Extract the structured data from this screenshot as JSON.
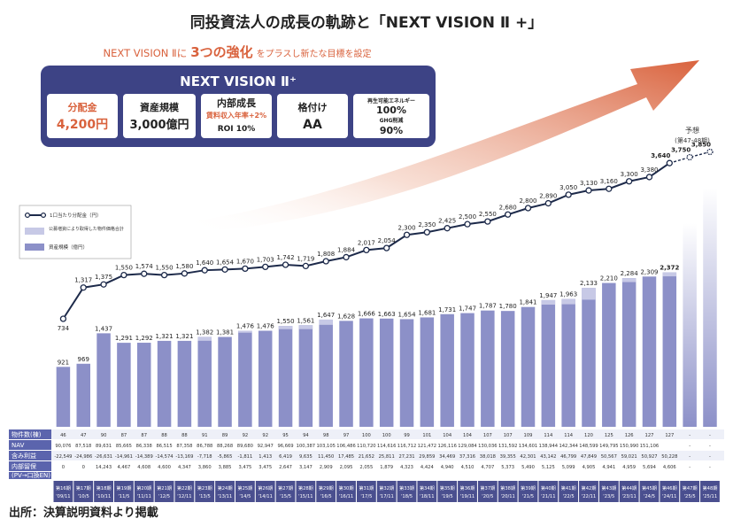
{
  "title": "同投資法人の成長の軌跡と「NEXT VISION Ⅱ +」",
  "subtitle_prefix": "NEXT VISION Ⅱに",
  "subtitle_emph": "3つの強化",
  "subtitle_suffix": "をプラスし新たな目標を設定",
  "box": {
    "title": "NEXT VISION Ⅱ⁺",
    "c1_label": "分配金",
    "c1_value": "4,200円",
    "c2_label": "資産規模",
    "c2_value": "3,000億円",
    "c3_label": "内部成長",
    "c3_sub1": "賃料収入年率+2%",
    "c3_sub2": "ROI 10%",
    "c4_label": "格付け",
    "c4_value": "AA",
    "c5_label1": "再生可能エネルギー",
    "c5_value1": "100%",
    "c5_label2": "GHG削減",
    "c5_value2": "90%"
  },
  "forecast_label": "予想",
  "forecast_range": "(第47-48期)",
  "legend": {
    "line": "1口当たり分配金（円）",
    "light": "公募増資により取得した物件価格合計",
    "dark": "資産規模（億円）"
  },
  "table_labels": [
    "物件数(棟)",
    "NAV",
    "含み利益",
    "内部留保",
    "(PV→口換EN)"
  ],
  "source": "出所：決算説明資料より掲載",
  "colors": {
    "bar": "#8c90c8",
    "bar_light": "#c7c9e6",
    "header": "#4a4f8f",
    "arrow": "#d96a45",
    "forecast": "#cc3333"
  },
  "chart_data": {
    "type": "bar",
    "categories": [
      "第16期 '09/11",
      "第17期 '10/5",
      "第18期 '10/11",
      "第19期 '11/5",
      "第20期 '11/11",
      "第21期 '12/5",
      "第22期 '12/11",
      "第23期 '13/5",
      "第24期 '13/11",
      "第25期 '14/5",
      "第26期 '14/11",
      "第27期 '15/5",
      "第28期 '15/11",
      "第29期 '16/5",
      "第30期 '16/11",
      "第31期 '17/5",
      "第32期 '17/11",
      "第33期 '18/5",
      "第34期 '18/11",
      "第35期 '19/5",
      "第36期 '19/11",
      "第37期 '20/5",
      "第38期 '20/11",
      "第39期 '21/5",
      "第40期 '21/11",
      "第41期 '22/5",
      "第42期 '22/11",
      "第43期 '23/5",
      "第44期 '23/11",
      "第45期 '24/5",
      "第46期 '24/11",
      "第47期 '25/5",
      "第48期 '25/11"
    ],
    "asset_scale": [
      921,
      969,
      1437,
      1291,
      1292,
      1321,
      1321,
      1382,
      1381,
      1476,
      1476,
      1550,
      1561,
      1647,
      1628,
      1666,
      1663,
      1654,
      1681,
      1731,
      1747,
      1787,
      1780,
      1841,
      1947,
      1963,
      2133,
      2210,
      2284,
      2309,
      2372,
      null,
      null
    ],
    "public_offering": [
      0,
      0,
      0,
      0,
      0,
      0,
      0,
      60,
      0,
      30,
      0,
      50,
      60,
      80,
      0,
      0,
      0,
      0,
      0,
      0,
      0,
      0,
      0,
      0,
      70,
      80,
      180,
      0,
      60,
      0,
      60,
      null,
      null
    ],
    "distribution": [
      734,
      1317,
      1375,
      1550,
      1574,
      1550,
      1580,
      1640,
      1654,
      1670,
      1703,
      1742,
      1719,
      1808,
      1884,
      2017,
      2054,
      2300,
      2350,
      2425,
      2500,
      2550,
      2680,
      2800,
      2890,
      3050,
      3130,
      3160,
      3300,
      3380,
      3640,
      3750,
      3850
    ],
    "properties": [
      "46",
      "47",
      "90",
      "87",
      "87",
      "88",
      "88",
      "91",
      "89",
      "92",
      "92",
      "95",
      "94",
      "98",
      "97",
      "100",
      "100",
      "99",
      "101",
      "104",
      "104",
      "107",
      "107",
      "109",
      "114",
      "114",
      "120",
      "125",
      "126",
      "127",
      "127",
      "-",
      "-"
    ],
    "nav": [
      "90,076",
      "87,518",
      "89,631",
      "85,665",
      "86,338",
      "86,515",
      "87,358",
      "86,788",
      "88,268",
      "89,680",
      "92,947",
      "96,669",
      "100,387",
      "103,105",
      "106,486",
      "110,720",
      "114,616",
      "116,712",
      "121,472",
      "126,116",
      "129,084",
      "130,036",
      "131,592",
      "134,601",
      "138,944",
      "142,344",
      "148,599",
      "149,795",
      "150,990",
      "151,106",
      "",
      "-",
      "-"
    ],
    "unrealized": [
      "-22,549",
      "-24,986",
      "-26,631",
      "-14,961",
      "-14,389",
      "-14,574",
      "-13,169",
      "-7,718",
      "-5,865",
      "-1,811",
      "1,413",
      "6,419",
      "9,635",
      "11,450",
      "17,485",
      "21,652",
      "25,811",
      "27,231",
      "29,859",
      "34,469",
      "37,316",
      "38,018",
      "39,355",
      "42,301",
      "43,142",
      "46,799",
      "47,849",
      "50,567",
      "59,021",
      "50,927",
      "50,228",
      "-",
      "-"
    ],
    "retained": [
      "0",
      "0",
      "14,243",
      "4,467",
      "4,608",
      "4,600",
      "4,347",
      "3,860",
      "3,885",
      "3,475",
      "3,475",
      "2,647",
      "3,147",
      "2,909",
      "2,095",
      "2,055",
      "1,879",
      "4,323",
      "4,424",
      "4,940",
      "4,510",
      "4,707",
      "5,373",
      "5,490",
      "5,125",
      "5,099",
      "4,905",
      "4,941",
      "4,959",
      "5,694",
      "4,606",
      "-",
      "-"
    ],
    "ylim": [
      0,
      4000
    ]
  }
}
